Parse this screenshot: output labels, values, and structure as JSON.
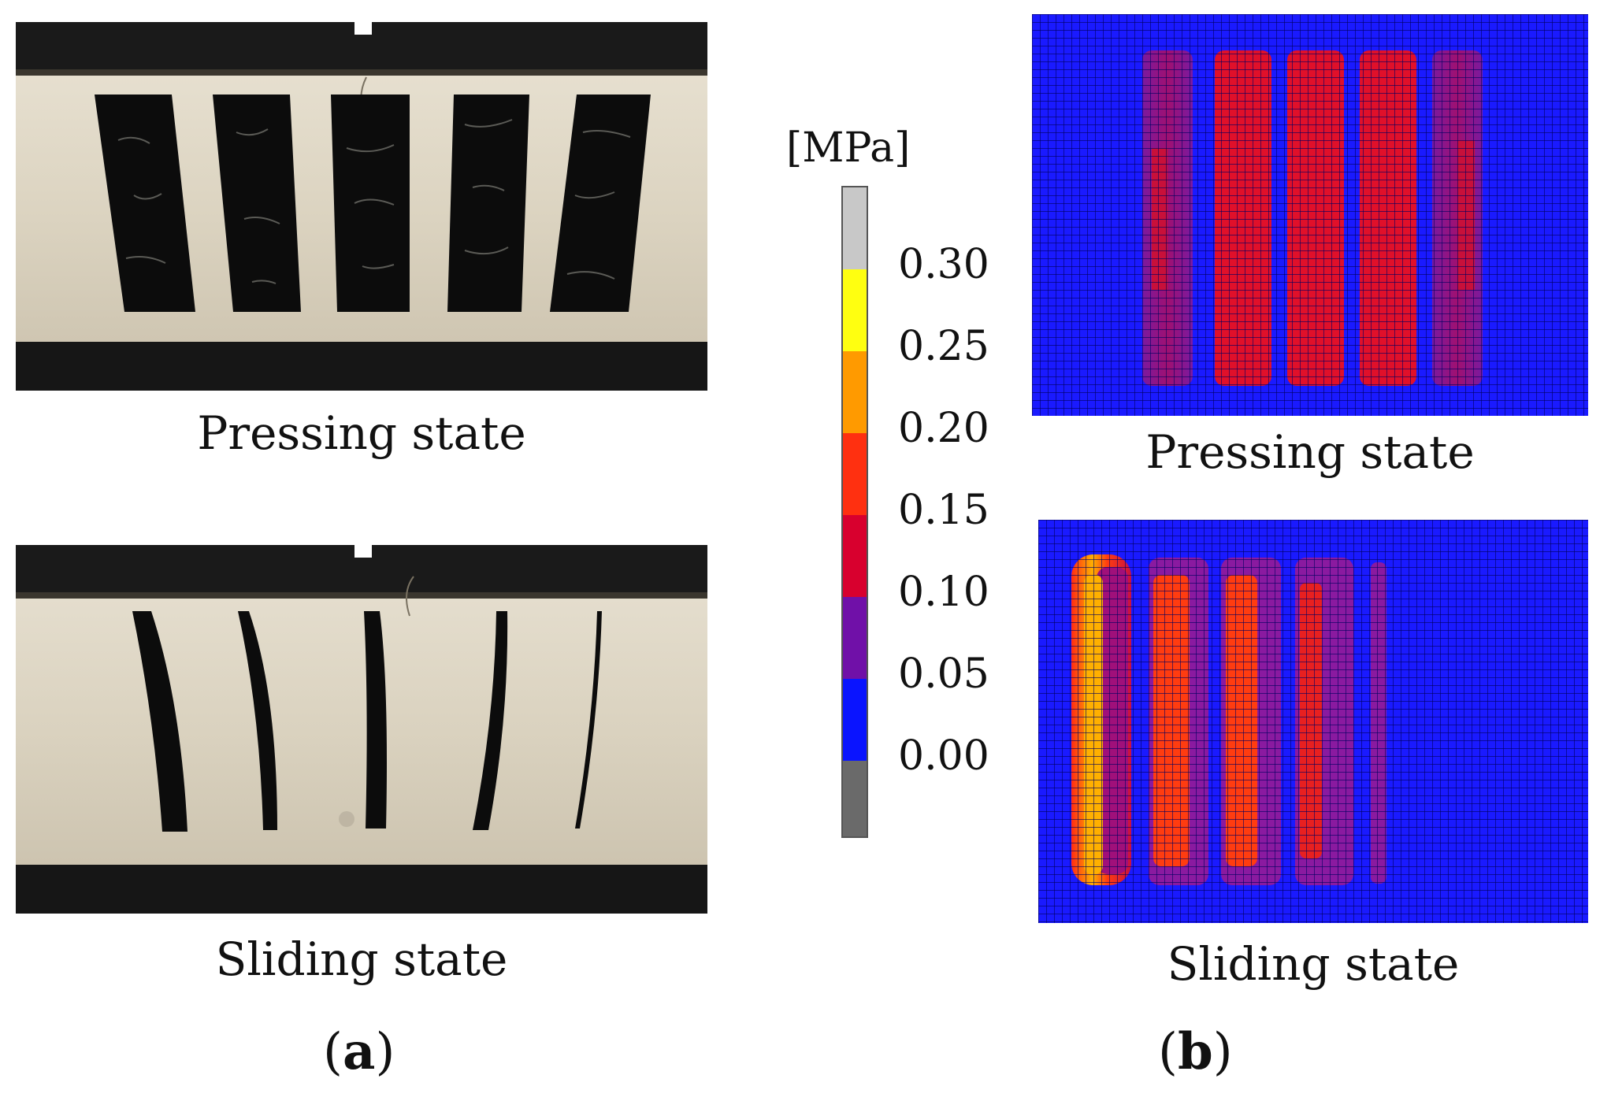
{
  "panel_a": {
    "top_caption": "Pressing state",
    "bottom_caption": "Sliding state",
    "label_open": "(",
    "label_letter": "a",
    "label_close": ")"
  },
  "panel_b": {
    "top_caption": "Pressing state",
    "bottom_caption": "Sliding state",
    "label_open": "(",
    "label_letter": "b",
    "label_close": ")"
  },
  "colorbar": {
    "unit": "[MPa]",
    "ticks": [
      "0.30",
      "0.25",
      "0.20",
      "0.15",
      "0.10",
      "0.05",
      "0.00"
    ],
    "bands": [
      {
        "range": "above 0.30",
        "color": "#c8c8c8"
      },
      {
        "range": "0.25-0.30",
        "color": "#ffff10"
      },
      {
        "range": "0.20-0.25",
        "color": "#ff9a00"
      },
      {
        "range": "0.15-0.20",
        "color": "#ff3010"
      },
      {
        "range": "0.10-0.15",
        "color": "#d8002e"
      },
      {
        "range": "0.05-0.10",
        "color": "#7010a8"
      },
      {
        "range": "0.00-0.05",
        "color": "#0a14ff"
      },
      {
        "range": "below 0.00",
        "color": "#6a6a6a"
      }
    ]
  },
  "colors": {
    "background_blue": "#1a1aff",
    "grid_line": "#000060",
    "pressing_strip_center": "#e0102a",
    "pressing_strip_outer": "#8a1a8a",
    "sliding_strip_core": "#ffb000",
    "sliding_strip_mid": "#ff3c10",
    "board_cream": "#ded6c4",
    "rubber_black": "#0c0c0c"
  }
}
